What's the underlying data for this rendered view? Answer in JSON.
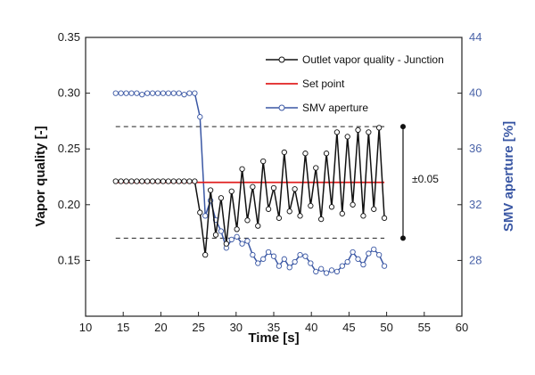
{
  "chart_data": {
    "type": "line",
    "title": "",
    "xlabel": "Time [s]",
    "ylabel": "Vapor quality [-]",
    "y2label": "SMV aperture [%]",
    "xlim": [
      10,
      60
    ],
    "ylim": [
      0.1,
      0.35
    ],
    "y2lim": [
      24,
      44
    ],
    "x_ticks": [
      "10",
      "15",
      "20",
      "25",
      "30",
      "35",
      "40",
      "45",
      "50",
      "55",
      "60"
    ],
    "y_ticks": [
      "0.15",
      "0.20",
      "0.25",
      "0.30",
      "0.35"
    ],
    "y2_ticks": [
      "28",
      "32",
      "36",
      "40",
      "44"
    ],
    "legend_position": "top-right",
    "series": [
      {
        "name": "Outlet vapor quality - Junction",
        "axis": "left",
        "color": "#111111",
        "marker": "open-circle",
        "x": [
          14,
          14.7,
          15.4,
          16.1,
          16.8,
          17.5,
          18.2,
          18.9,
          19.6,
          20.3,
          21,
          21.7,
          22.4,
          23.1,
          23.8,
          24.5,
          25.2,
          25.9,
          26.6,
          27.3,
          28,
          28.7,
          29.4,
          30.1,
          30.8,
          31.5,
          32.2,
          32.9,
          33.6,
          34.3,
          35,
          35.7,
          36.4,
          37.1,
          37.8,
          38.5,
          39.2,
          39.9,
          40.6,
          41.3,
          42,
          42.7,
          43.4,
          44.1,
          44.8,
          45.5,
          46.2,
          46.9,
          47.6,
          48.3,
          49,
          49.7
        ],
        "y": [
          0.221,
          0.221,
          0.221,
          0.221,
          0.221,
          0.221,
          0.221,
          0.221,
          0.221,
          0.221,
          0.221,
          0.221,
          0.221,
          0.221,
          0.221,
          0.221,
          0.193,
          0.155,
          0.213,
          0.173,
          0.206,
          0.165,
          0.212,
          0.178,
          0.232,
          0.186,
          0.216,
          0.181,
          0.239,
          0.196,
          0.215,
          0.188,
          0.247,
          0.194,
          0.214,
          0.19,
          0.246,
          0.199,
          0.233,
          0.187,
          0.246,
          0.198,
          0.265,
          0.192,
          0.261,
          0.2,
          0.267,
          0.19,
          0.265,
          0.196,
          0.269,
          0.188
        ]
      },
      {
        "name": "Set point",
        "axis": "left",
        "color": "#e02020",
        "marker": "none",
        "x": [
          14,
          49.7
        ],
        "y": [
          0.22,
          0.22
        ]
      },
      {
        "name": "SMV aperture",
        "axis": "right",
        "color": "#3a57a4",
        "marker": "open-circle",
        "x": [
          14,
          14.7,
          15.4,
          16.1,
          16.8,
          17.5,
          18.2,
          18.9,
          19.6,
          20.3,
          21,
          21.7,
          22.4,
          23.1,
          23.8,
          24.5,
          25.2,
          25.9,
          26.6,
          27.3,
          28,
          28.7,
          29.4,
          30.1,
          30.8,
          31.5,
          32.2,
          32.9,
          33.6,
          34.3,
          35,
          35.7,
          36.4,
          37.1,
          37.8,
          38.5,
          39.2,
          39.9,
          40.6,
          41.3,
          42,
          42.7,
          43.4,
          44.1,
          44.8,
          45.5,
          46.2,
          46.9,
          47.6,
          48.3,
          49,
          49.7
        ],
        "y": [
          40,
          40,
          40,
          40,
          40,
          39.9,
          40,
          40,
          40,
          40,
          40,
          40,
          40,
          39.9,
          40,
          40,
          38.3,
          31.2,
          32.3,
          30.9,
          30.1,
          28.9,
          29.5,
          29.7,
          29.2,
          29.4,
          28.4,
          27.8,
          28.1,
          28.6,
          28.3,
          27.6,
          28.1,
          27.5,
          27.9,
          28.4,
          28.3,
          27.8,
          27.2,
          27.4,
          27.1,
          27.3,
          27.2,
          27.6,
          27.9,
          28.6,
          28.1,
          27.7,
          28.5,
          28.8,
          28.4,
          27.6
        ]
      }
    ],
    "annotations": [
      {
        "text": "±0.05"
      }
    ]
  }
}
